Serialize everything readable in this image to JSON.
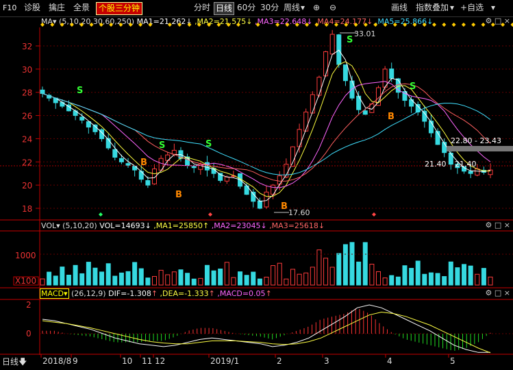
{
  "toolbar": {
    "f10": "F10",
    "items": [
      "诊股",
      "擒庄",
      "全景"
    ],
    "highlight": "个股三分钟",
    "periods": [
      "分时",
      "日线",
      "60分",
      "30分",
      "周线"
    ],
    "right_items": [
      "画线",
      "指数叠加",
      "自选"
    ],
    "period_selected": "日线"
  },
  "ma_line": {
    "name": "MA",
    "params": "(5,10,20,30,60,250)",
    "ma1": "MA1=21.262",
    "ma2": ",MA2=21.575",
    "ma3": ",MA3=22.648",
    "ma4": ",MA4=24.177",
    "ma5": ",MA5=25.866"
  },
  "vol_line": {
    "name": "VOL",
    "params": "(5,10,20)",
    "vol": "VOL=14693",
    "ma1": ",MA1=25850",
    "ma2": ",MA2=23045",
    "ma3": ",MA3=25618"
  },
  "macd_line": {
    "name": "MACD",
    "params": "(26,12,9)",
    "dif": "DIF=-1.308",
    "dea": ",DEA=-1.333",
    "macd": ",MACD=0.05"
  },
  "price_axis": [
    "32",
    "30",
    "28",
    "26",
    "24",
    "22",
    "20",
    "18"
  ],
  "vol_axis": [
    "1000",
    "X100"
  ],
  "macd_axis": [
    "2",
    "0"
  ],
  "x_axis": [
    "2018/8",
    "9",
    "10",
    "11",
    "12",
    "2019/1",
    "2",
    "3",
    "4",
    "5"
  ],
  "status_left": "日线",
  "annotations": {
    "high": "33.01",
    "low": "17.60",
    "level1": "22.80 - 23.43",
    "level2": "21.40",
    "level3": "21.40"
  },
  "signals": {
    "buy": "B",
    "sell": "S"
  },
  "colors": {
    "up": "#ff3b3b",
    "down": "#36d9e0",
    "ma1": "#ffffff",
    "ma2": "#ffff40",
    "ma3": "#ff66ff",
    "ma4": "#ff6060",
    "ma5": "#40e0ff",
    "axis": "#c80000"
  },
  "chart_data": {
    "type": "candlestick",
    "title": "",
    "x_labels": [
      "2018/8",
      "9",
      "10",
      "11",
      "12",
      "2019/1",
      "2",
      "3",
      "4",
      "5"
    ],
    "ylim": [
      17,
      34
    ],
    "close": [
      27.9,
      27.5,
      27.1,
      26.8,
      26.4,
      26.0,
      25.6,
      25.0,
      24.6,
      24.0,
      23.2,
      22.4,
      22.0,
      21.7,
      21.3,
      20.5,
      20.0,
      21.4,
      22.3,
      22.6,
      23.0,
      22.3,
      21.7,
      21.5,
      21.8,
      21.3,
      21.0,
      20.4,
      20.7,
      20.8,
      19.9,
      19.2,
      18.6,
      18.0,
      19.4,
      20.0,
      20.8,
      21.8,
      23.3,
      24.8,
      26.3,
      27.8,
      29.3,
      31.5,
      33.0,
      30.4,
      29.0,
      27.5,
      26.5,
      26.1,
      27.0,
      28.4,
      30.0,
      29.2,
      28.0,
      27.3,
      26.8,
      26.3,
      25.5,
      24.5,
      23.5,
      22.8,
      21.8,
      21.5,
      21.2,
      21.0,
      21.4,
      21.1,
      21.3
    ],
    "macd_dif": [
      1.0,
      0.9,
      0.7,
      0.5,
      0.3,
      0.0,
      -0.3,
      -0.5,
      -0.7,
      -0.8,
      -0.9,
      -0.8,
      -0.6,
      -0.4,
      -0.3,
      -0.4,
      -0.5,
      -0.6,
      -0.7,
      -0.9,
      -0.8,
      -0.6,
      -0.3,
      0.2,
      0.7,
      1.2,
      1.8,
      2.0,
      1.8,
      1.4,
      1.0,
      0.6,
      0.2,
      -0.3,
      -0.8,
      -1.1,
      -1.3,
      -1.3
    ],
    "macd_dea": [
      0.9,
      0.8,
      0.7,
      0.55,
      0.4,
      0.2,
      0.0,
      -0.2,
      -0.4,
      -0.55,
      -0.65,
      -0.7,
      -0.7,
      -0.6,
      -0.5,
      -0.5,
      -0.5,
      -0.55,
      -0.6,
      -0.7,
      -0.75,
      -0.7,
      -0.55,
      -0.3,
      0.1,
      0.5,
      0.9,
      1.3,
      1.5,
      1.4,
      1.2,
      0.9,
      0.6,
      0.2,
      -0.2,
      -0.6,
      -1.0,
      -1.33
    ]
  }
}
